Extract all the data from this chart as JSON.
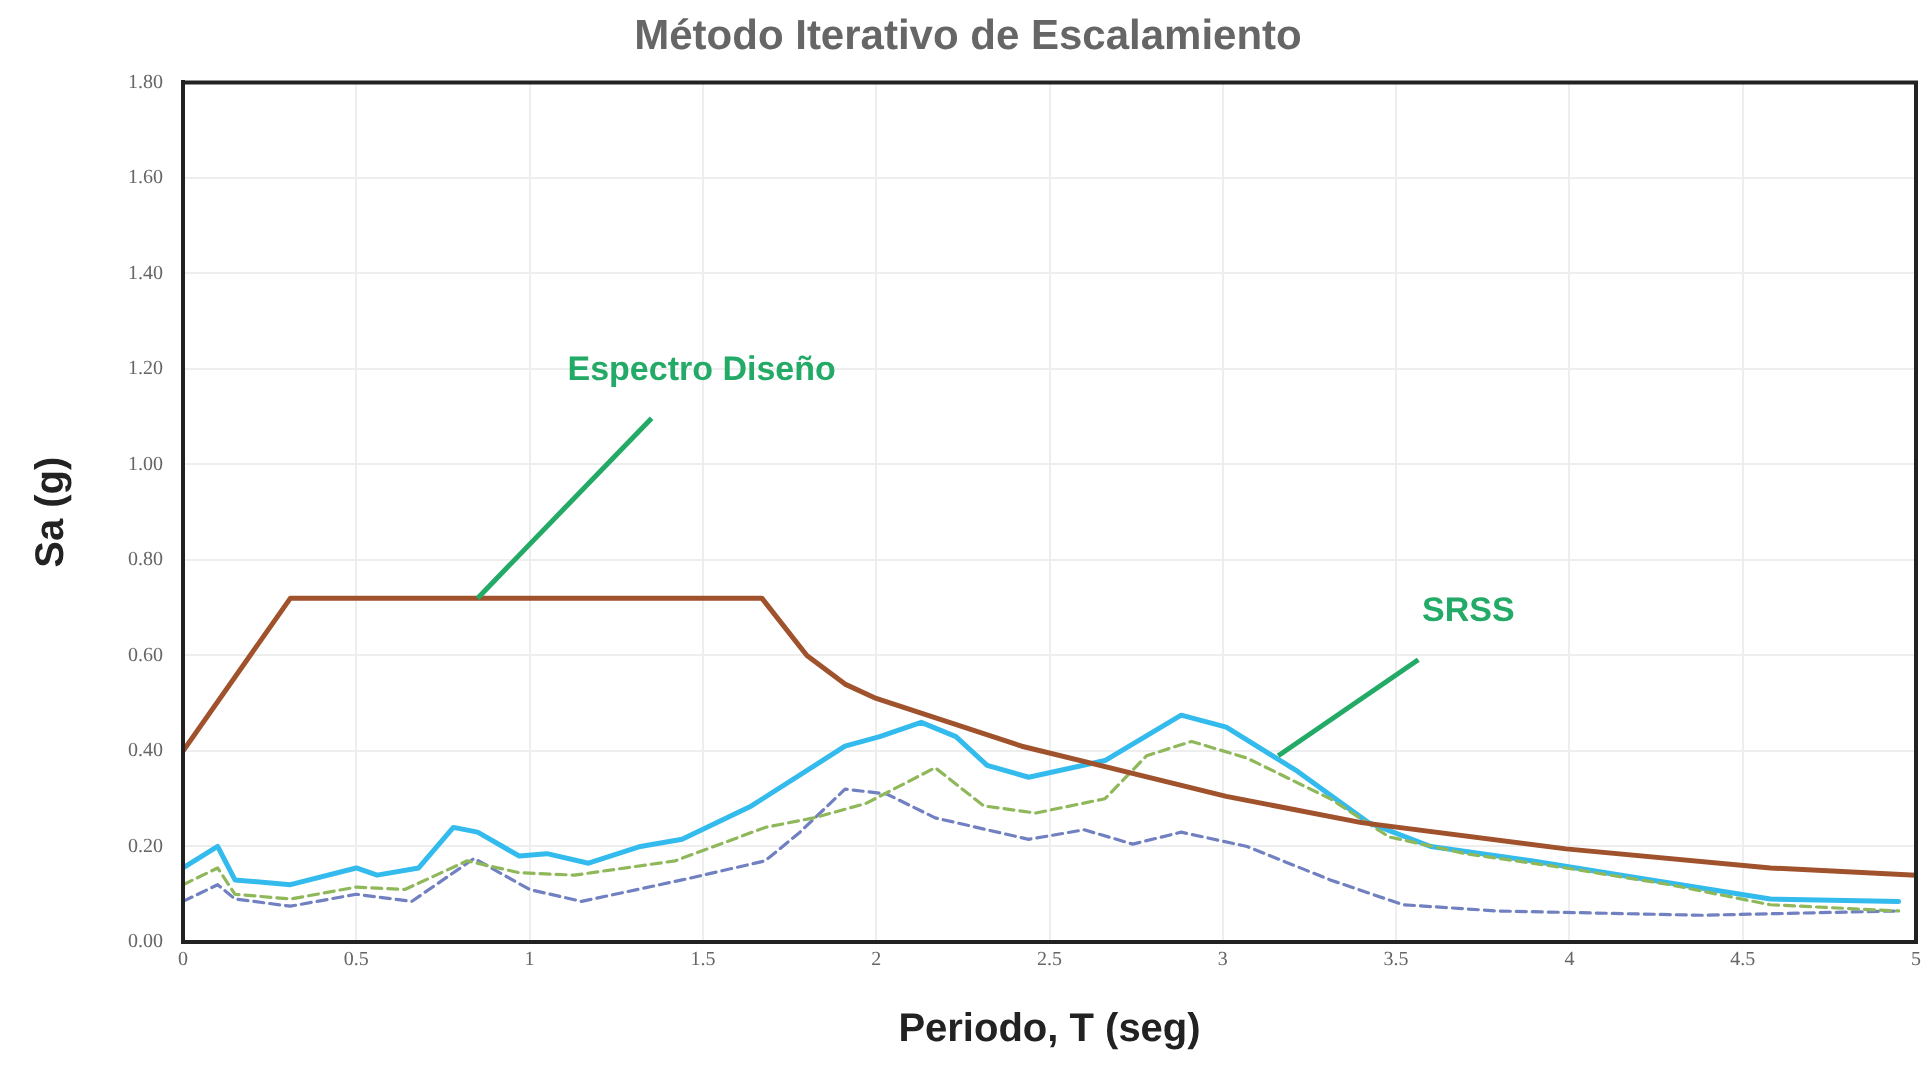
{
  "chart_data": {
    "type": "line",
    "title": "Método Iterativo de Escalamiento",
    "xlabel": "Periodo, T (seg)",
    "ylabel": "Sa (g)",
    "xlim": [
      0,
      5
    ],
    "xticks": [
      0,
      0.5,
      1,
      1.5,
      2,
      2.5,
      3,
      3.5,
      4,
      4.5,
      5
    ],
    "ylim": [
      0,
      1.8
    ],
    "yticks": [
      {
        "value": 0,
        "label": "0.00"
      },
      {
        "value": 0.2,
        "label": "0.20"
      },
      {
        "value": 0.4,
        "label": "0.40"
      },
      {
        "value": 0.6,
        "label": "0.60"
      },
      {
        "value": 0.8,
        "label": "0.80"
      },
      {
        "value": 1,
        "label": "1.00"
      },
      {
        "value": 1.2,
        "label": "1.20"
      },
      {
        "value": 1.4,
        "label": "1.40"
      },
      {
        "value": 1.6,
        "label": "1.60"
      },
      {
        "value": 1.8,
        "label": "1.80"
      }
    ],
    "grid": true,
    "legend": false,
    "marker": "none",
    "series": [
      {
        "color": "#a0522d",
        "line_style": "solid",
        "x": [
          0,
          0.31,
          1.67,
          1.8,
          1.91,
          2.0,
          2.42,
          3.01,
          3.4,
          3.99,
          4.58,
          5.0
        ],
        "values": [
          0.4,
          0.72,
          0.72,
          0.6,
          0.54,
          0.51,
          0.41,
          0.305,
          0.25,
          0.195,
          0.155,
          0.14
        ]
      },
      {
        "color": "#8fb85a",
        "line_style": "dashed",
        "x": [
          0,
          0.1,
          0.15,
          0.31,
          0.5,
          0.64,
          0.82,
          0.97,
          1.13,
          1.42,
          1.68,
          1.82,
          1.97,
          2.17,
          2.31,
          2.46,
          2.66,
          2.78,
          2.91,
          3.07,
          3.31,
          3.48,
          3.7,
          3.99,
          4.29,
          4.58,
          4.95
        ],
        "values": [
          0.12,
          0.155,
          0.1,
          0.09,
          0.115,
          0.11,
          0.17,
          0.145,
          0.14,
          0.17,
          0.24,
          0.26,
          0.29,
          0.365,
          0.285,
          0.27,
          0.3,
          0.39,
          0.42,
          0.385,
          0.3,
          0.22,
          0.185,
          0.155,
          0.12,
          0.078,
          0.065
        ]
      },
      {
        "color": "#7080c0",
        "line_style": "dashed",
        "x": [
          0,
          0.1,
          0.15,
          0.31,
          0.5,
          0.66,
          0.84,
          1.0,
          1.15,
          1.44,
          1.68,
          1.78,
          1.91,
          2.03,
          2.17,
          2.44,
          2.6,
          2.74,
          2.88,
          3.07,
          3.31,
          3.52,
          3.79,
          4.38,
          4.95
        ],
        "values": [
          0.085,
          0.12,
          0.09,
          0.075,
          0.1,
          0.085,
          0.175,
          0.11,
          0.085,
          0.13,
          0.17,
          0.23,
          0.32,
          0.31,
          0.26,
          0.215,
          0.235,
          0.205,
          0.23,
          0.2,
          0.13,
          0.078,
          0.065,
          0.056,
          0.065
        ]
      },
      {
        "color": "#33bbee",
        "line_style": "solid",
        "x": [
          0,
          0.1,
          0.15,
          0.31,
          0.5,
          0.56,
          0.68,
          0.78,
          0.85,
          0.97,
          1.05,
          1.17,
          1.32,
          1.44,
          1.64,
          1.91,
          2.01,
          2.13,
          2.23,
          2.32,
          2.44,
          2.66,
          2.88,
          3.01,
          3.21,
          3.42,
          3.6,
          3.89,
          4.19,
          4.58,
          4.95
        ],
        "values": [
          0.155,
          0.2,
          0.13,
          0.12,
          0.155,
          0.14,
          0.155,
          0.24,
          0.23,
          0.18,
          0.185,
          0.165,
          0.2,
          0.215,
          0.285,
          0.41,
          0.43,
          0.46,
          0.43,
          0.37,
          0.345,
          0.38,
          0.475,
          0.45,
          0.36,
          0.25,
          0.2,
          0.17,
          0.135,
          0.09,
          0.085
        ]
      }
    ],
    "annotations": [
      {
        "text": "Espectro Diseño",
        "x": 0.85,
        "y": 0.72
      },
      {
        "text": "SRSS",
        "x": 3.16,
        "y": 0.39
      }
    ]
  }
}
